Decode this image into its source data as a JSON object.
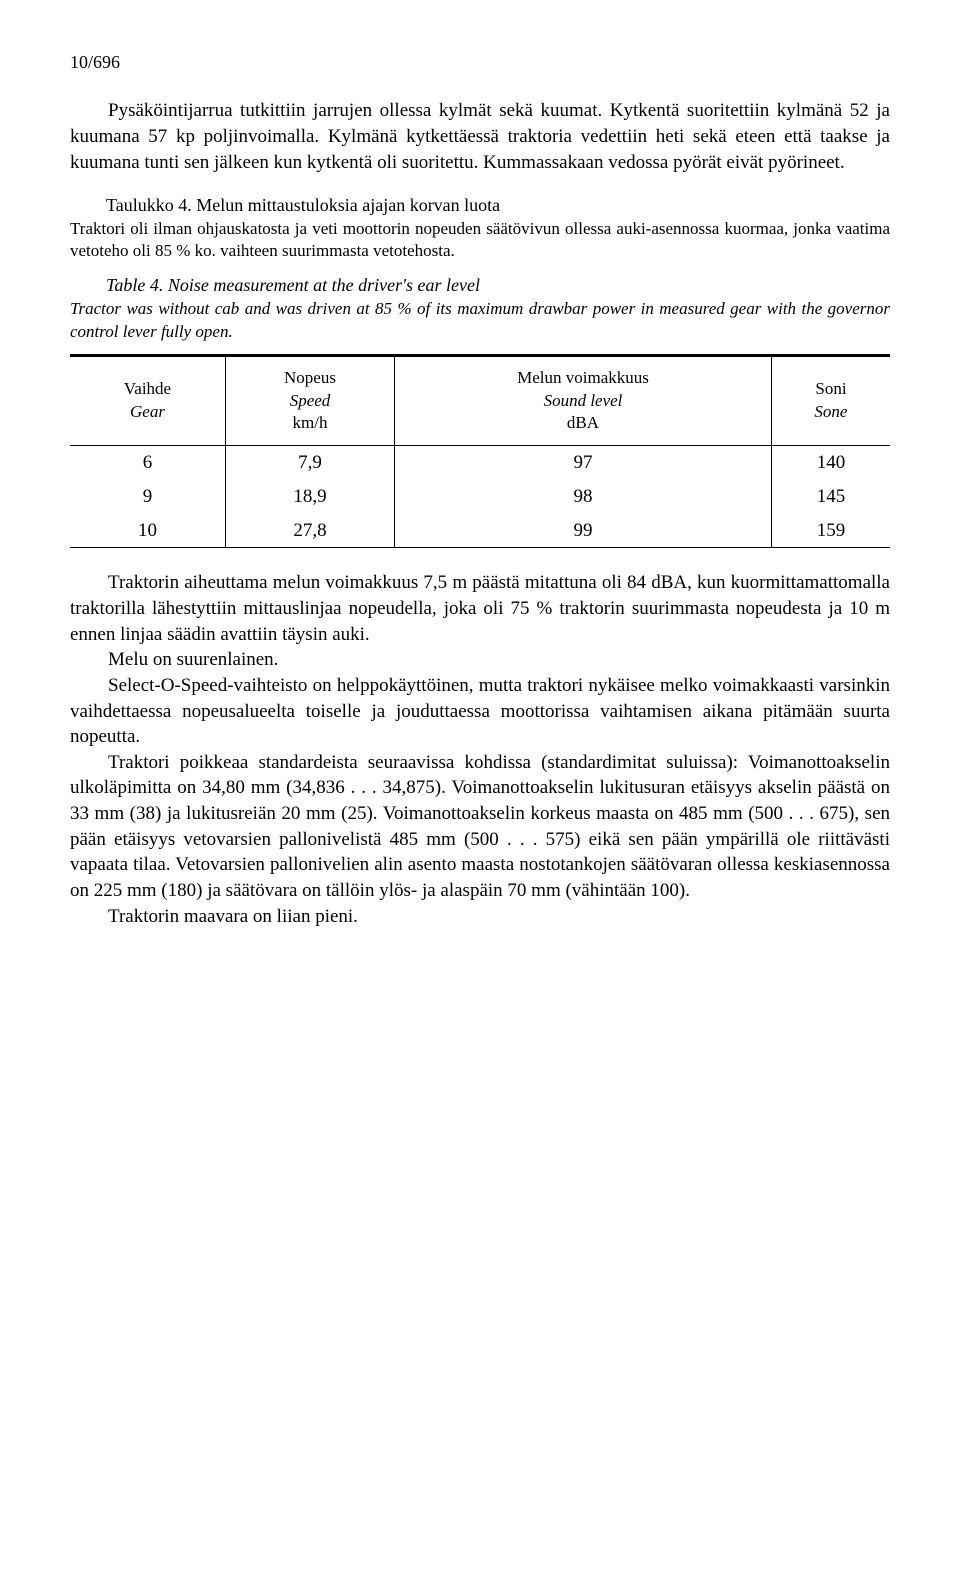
{
  "page_number": "10/696",
  "para1": "Pysäköintijarrua tutkittiin jarrujen ollessa kylmät sekä kuumat. Kytkentä suoritettiin kylmänä 52 ja kuumana 57 kp poljinvoimalla. Kylmänä kytkettäessä traktoria vedettiin heti sekä eteen että taakse ja kuumana tunti sen jälkeen kun kytkentä oli suoritettu. Kummassakaan vedossa pyörät eivät pyörineet.",
  "caption_fi_lead": "Taulukko 4. Melun mittaustuloksia ajajan korvan luota",
  "caption_fi_body": "Traktori oli ilman ohjauskatosta ja veti moottorin nopeuden säätövivun ollessa auki-asennossa kuormaa, jonka vaatima vetoteho oli 85 % ko. vaihteen suurimmasta vetotehosta.",
  "caption_en_lead": "Table 4. Noise measurement at the driver's ear level",
  "caption_en_body": "Tractor was without cab and was driven at 85 % of its maximum drawbar power in measured gear with the governor control lever fully open.",
  "table": {
    "headers": {
      "c1_fi": "Vaihde",
      "c1_en": "Gear",
      "c2_fi": "Nopeus",
      "c2_en": "Speed",
      "c2_unit": "km/h",
      "c3_fi": "Melun voimakkuus",
      "c3_en": "Sound level",
      "c3_unit": "dBA",
      "c4_fi": "Soni",
      "c4_en": "Sone"
    },
    "rows": [
      {
        "gear": "6",
        "speed": "7,9",
        "db": "97",
        "sone": "140"
      },
      {
        "gear": "9",
        "speed": "18,9",
        "db": "98",
        "sone": "145"
      },
      {
        "gear": "10",
        "speed": "27,8",
        "db": "99",
        "sone": "159"
      }
    ]
  },
  "body2_p1": "Traktorin aiheuttama melun voimakkuus 7,5 m päästä mitattuna oli 84 dBA, kun kuormittamattomalla traktorilla lähestyttiin mittauslinjaa nopeudella, joka oli 75 % traktorin suurimmasta nopeudesta ja 10 m ennen linjaa säädin avattiin täysin auki.",
  "body2_p2": "Melu on suurenlainen.",
  "body2_p3": "Select-O-Speed-vaihteisto on helppokäyttöinen, mutta traktori nykäisee melko voimakkaasti varsinkin vaihdettaessa nopeusalueelta toiselle ja jouduttaessa moottorissa vaihtamisen aikana pitämään suurta nopeutta.",
  "body2_p4": "Traktori poikkeaa standardeista seuraavissa kohdissa (standardimitat suluissa): Voimanottoakselin ulkoläpimitta on 34,80 mm (34,836 . . . 34,875). Voimanottoakselin lukitusuran etäisyys akselin päästä on 33 mm (38) ja lukitusreiän 20 mm (25). Voimanottoakselin korkeus maasta on 485 mm (500 . . . 675), sen pään etäisyys vetovarsien pallonivelistä 485 mm (500 . . . 575) eikä sen pään ympärillä ole riittävästi vapaata tilaa. Vetovarsien pallonivelien alin asento maasta nostotankojen säätövaran ollessa keskiasennossa on 225 mm (180) ja säätövara on tällöin ylös- ja alaspäin 70 mm (vähintään 100).",
  "body2_p5": "Traktorin maavara on liian pieni."
}
